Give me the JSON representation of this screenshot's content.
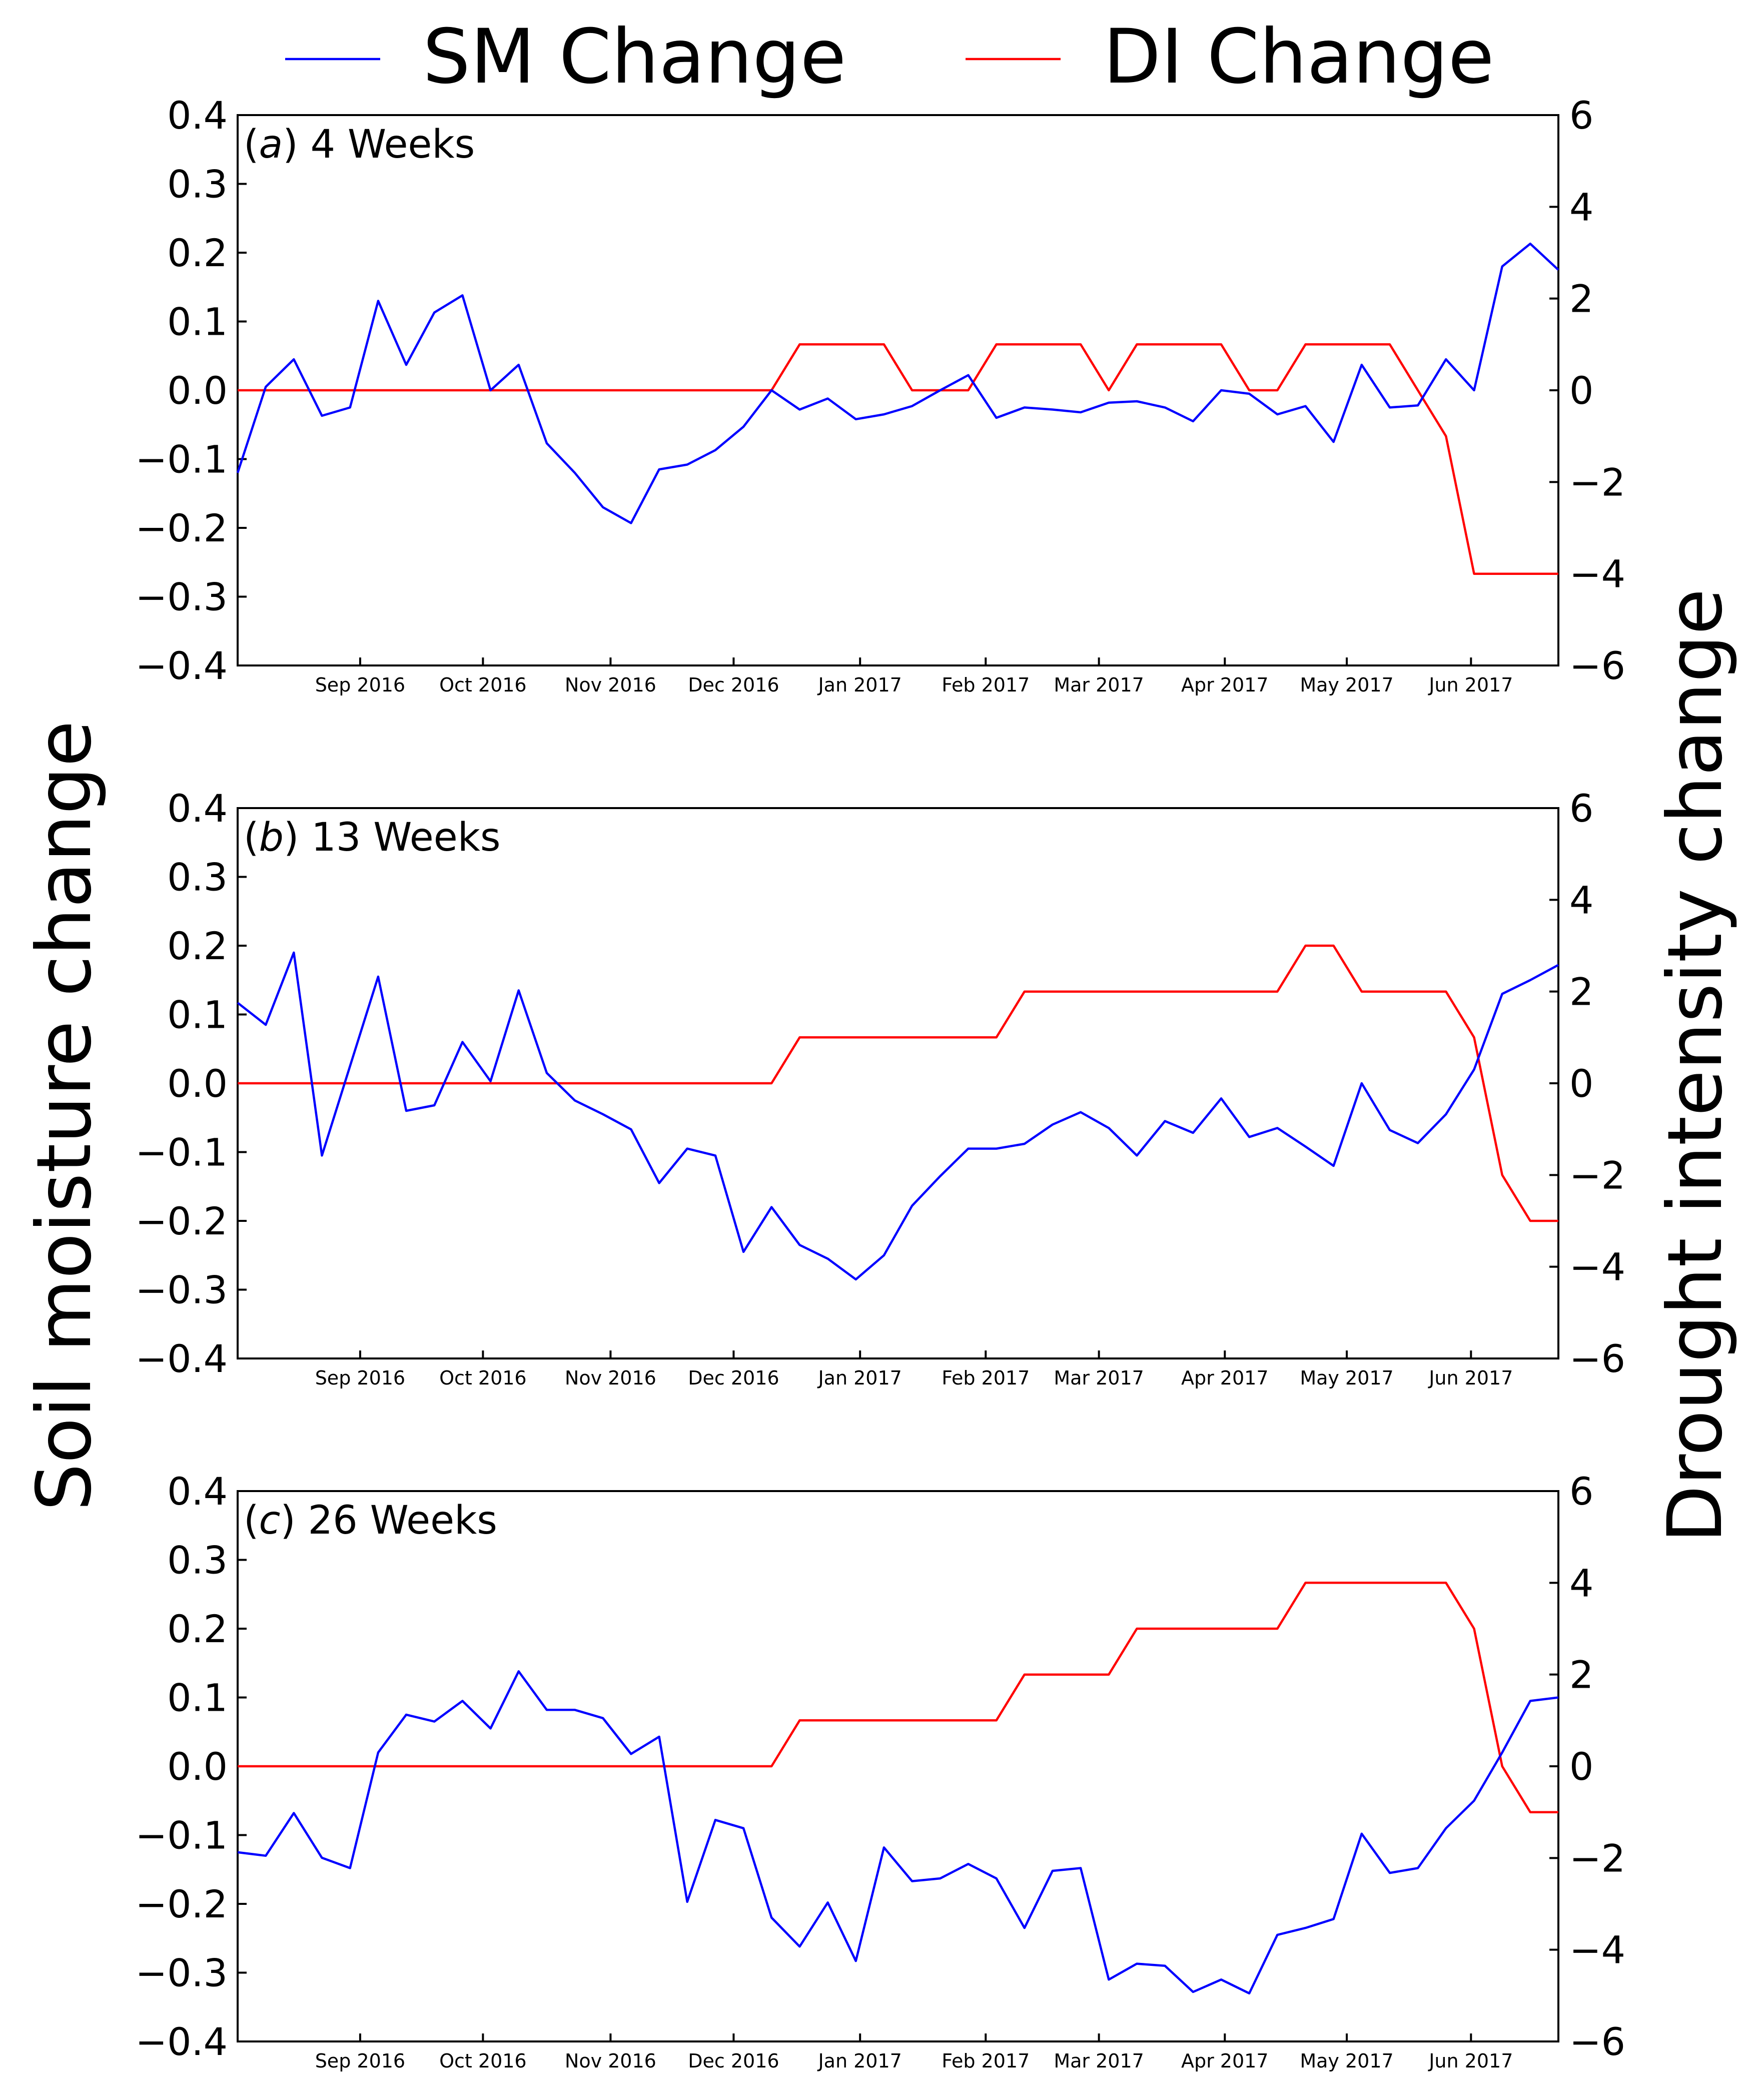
{
  "chart_data": {
    "type": "line",
    "legend": [
      {
        "name": "SM Change",
        "color": "#0000ff"
      },
      {
        "name": "DI Change",
        "color": "#ff0000"
      }
    ],
    "legend_position": "top-center",
    "ylabel_left": "Soil moisture change",
    "ylabel_right": "Drought intensity change",
    "left_ylim": [
      -0.4,
      0.4
    ],
    "right_ylim": [
      -6,
      6
    ],
    "left_ticks": [
      "0.4",
      "0.3",
      "0.2",
      "0.1",
      "0.0",
      "−0.1",
      "−0.2",
      "−0.3",
      "−0.4"
    ],
    "right_ticks": [
      "6",
      "4",
      "2",
      "0",
      "−2",
      "−4",
      "−6"
    ],
    "x_week_count": 48,
    "x_tick_labels": [
      "Sep 2016",
      "Oct 2016",
      "Nov 2016",
      "Dec 2016",
      "Jan 2017",
      "Feb 2017",
      "Mar 2017",
      "Apr 2017",
      "May 2017",
      "Jun 2017"
    ],
    "x_tick_weeks": [
      4.36,
      8.73,
      13.27,
      17.65,
      22.15,
      26.62,
      30.65,
      35.13,
      39.47,
      43.89
    ],
    "panels": [
      {
        "letter": "a",
        "label": "4 Weeks",
        "sm": [
          -0.12,
          0.005,
          0.045,
          -0.037,
          -0.025,
          0.13,
          0.037,
          0.113,
          0.138,
          0.0,
          0.037,
          -0.077,
          -0.12,
          -0.17,
          -0.193,
          -0.115,
          -0.108,
          -0.087,
          -0.053,
          0.0,
          -0.028,
          -0.012,
          -0.042,
          -0.035,
          -0.023,
          0.0,
          0.022,
          -0.04,
          -0.025,
          -0.028,
          -0.032,
          -0.018,
          -0.016,
          -0.025,
          -0.045,
          0.0,
          -0.005,
          -0.035,
          -0.023,
          -0.075,
          0.037,
          -0.025,
          -0.022,
          0.045,
          0.0,
          0.18,
          0.213,
          0.175
        ],
        "di": [
          0,
          0,
          0,
          0,
          0,
          0,
          0,
          0,
          0,
          0,
          0,
          0,
          0,
          0,
          0,
          0,
          0,
          0,
          0,
          0,
          1,
          1,
          1,
          1,
          0,
          0,
          0,
          1,
          1,
          1,
          1,
          0,
          1,
          1,
          1,
          1,
          0,
          0,
          1,
          1,
          1,
          1,
          0,
          -1,
          -4,
          -4,
          -4,
          -4
        ]
      },
      {
        "letter": "b",
        "label": "13 Weeks",
        "sm": [
          0.117,
          0.085,
          0.19,
          -0.105,
          0.025,
          0.155,
          -0.04,
          -0.032,
          0.06,
          0.003,
          0.135,
          0.015,
          -0.025,
          -0.045,
          -0.067,
          -0.145,
          -0.095,
          -0.105,
          -0.245,
          -0.18,
          -0.235,
          -0.255,
          -0.285,
          -0.25,
          -0.178,
          -0.135,
          -0.095,
          -0.095,
          -0.088,
          -0.06,
          -0.042,
          -0.065,
          -0.105,
          -0.055,
          -0.072,
          -0.022,
          -0.078,
          -0.065,
          -0.092,
          -0.12,
          0.0,
          -0.068,
          -0.087,
          -0.045,
          0.02,
          0.13,
          0.15,
          0.172
        ],
        "di": [
          0,
          0,
          0,
          0,
          0,
          0,
          0,
          0,
          0,
          0,
          0,
          0,
          0,
          0,
          0,
          0,
          0,
          0,
          0,
          0,
          1,
          1,
          1,
          1,
          1,
          1,
          1,
          1,
          2,
          2,
          2,
          2,
          2,
          2,
          2,
          2,
          2,
          2,
          3,
          3,
          2,
          2,
          2,
          2,
          1,
          -2,
          -3,
          -3
        ]
      },
      {
        "letter": "c",
        "label": "26 Weeks",
        "sm": [
          -0.125,
          -0.13,
          -0.068,
          -0.133,
          -0.148,
          0.02,
          0.075,
          0.065,
          0.095,
          0.055,
          0.138,
          0.082,
          0.082,
          0.07,
          0.018,
          0.043,
          -0.197,
          -0.078,
          -0.09,
          -0.22,
          -0.262,
          -0.198,
          -0.283,
          -0.118,
          -0.167,
          -0.163,
          -0.142,
          -0.163,
          -0.235,
          -0.152,
          -0.148,
          -0.31,
          -0.287,
          -0.29,
          -0.328,
          -0.31,
          -0.33,
          -0.245,
          -0.235,
          -0.222,
          -0.098,
          -0.155,
          -0.148,
          -0.09,
          -0.05,
          0.02,
          0.095,
          0.1
        ],
        "di": [
          0,
          0,
          0,
          0,
          0,
          0,
          0,
          0,
          0,
          0,
          0,
          0,
          0,
          0,
          0,
          0,
          0,
          0,
          0,
          0,
          1,
          1,
          1,
          1,
          1,
          1,
          1,
          1,
          2,
          2,
          2,
          2,
          3,
          3,
          3,
          3,
          3,
          3,
          4,
          4,
          4,
          4,
          4,
          4,
          3,
          0,
          -1,
          -1
        ]
      }
    ]
  }
}
